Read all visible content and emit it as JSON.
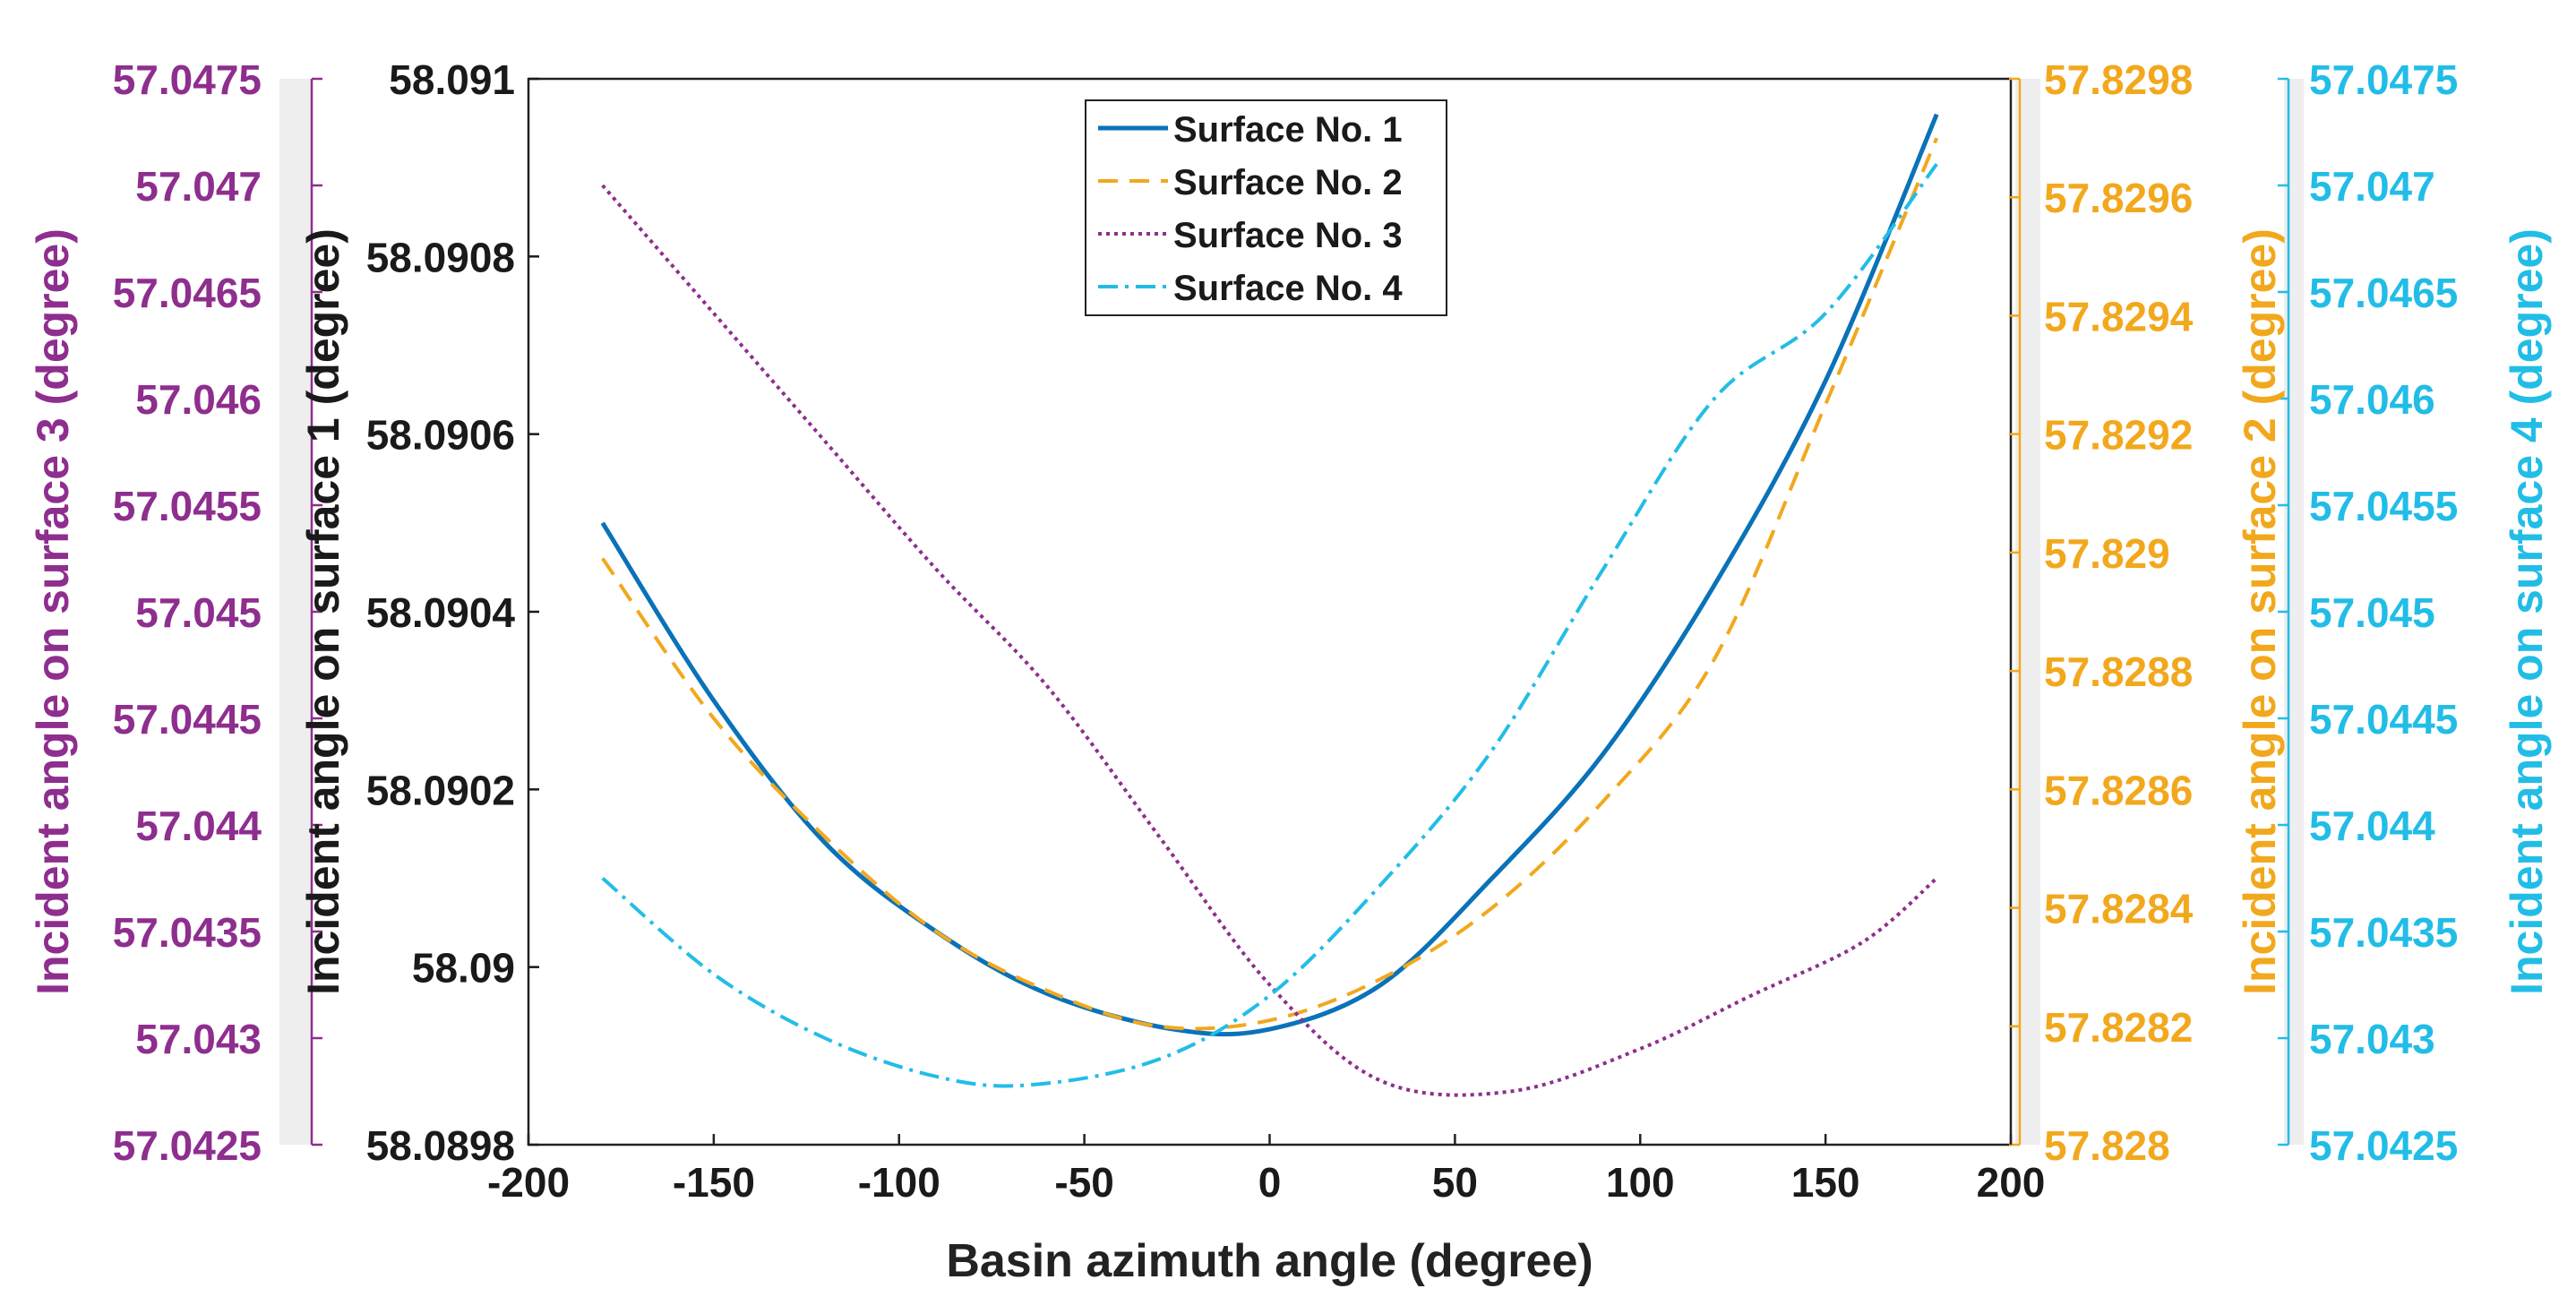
{
  "chart_data": {
    "type": "line",
    "title": "",
    "xlabel": "Basin azimuth angle (degree)",
    "xlim": [
      -200,
      200
    ],
    "x_ticks": [
      "-200",
      "-150",
      "-100",
      "-50",
      "0",
      "50",
      "100",
      "150",
      "200"
    ],
    "x_tick_values": [
      -200,
      -150,
      -100,
      -50,
      0,
      50,
      100,
      150,
      200
    ],
    "grid": false,
    "legend_position": "top-center",
    "axes": [
      {
        "id": "ax1",
        "label": "Incident angle on surface 1 (degree)",
        "color": "#1a1a1a",
        "side": "left-inner",
        "ylim": [
          58.0898,
          58.091
        ],
        "tick_values": [
          58.0898,
          58.09,
          58.0902,
          58.0904,
          58.0906,
          58.0908,
          58.091
        ],
        "ticks": [
          "58.0898",
          "58.09",
          "58.0902",
          "58.0904",
          "58.0906",
          "58.0908",
          "58.091"
        ]
      },
      {
        "id": "ax3",
        "label": "Incident angle on surface 3 (degree)",
        "color": "#8e2e8e",
        "side": "left-outer",
        "ylim": [
          57.0425,
          57.0475
        ],
        "tick_values": [
          57.0425,
          57.043,
          57.0435,
          57.044,
          57.0445,
          57.045,
          57.0455,
          57.046,
          57.0465,
          57.047,
          57.0475
        ],
        "ticks": [
          "57.0425",
          "57.043",
          "57.0435",
          "57.044",
          "57.0445",
          "57.045",
          "57.0455",
          "57.046",
          "57.0465",
          "57.047",
          "57.0475"
        ]
      },
      {
        "id": "ax2",
        "label": "Incident angle on surface 2 (degree)",
        "color": "#f2a81d",
        "side": "right-inner",
        "ylim": [
          57.828,
          57.8298
        ],
        "tick_values": [
          57.828,
          57.8282,
          57.8284,
          57.8286,
          57.8288,
          57.829,
          57.8292,
          57.8294,
          57.8296,
          57.8298
        ],
        "ticks": [
          "57.828",
          "57.8282",
          "57.8284",
          "57.8286",
          "57.8288",
          "57.829",
          "57.8292",
          "57.8294",
          "57.8296",
          "57.8298"
        ]
      },
      {
        "id": "ax4",
        "label": "Incident angle on surface 4 (degree)",
        "color": "#22bde6",
        "side": "right-outer",
        "ylim": [
          57.0425,
          57.0475
        ],
        "tick_values": [
          57.0425,
          57.043,
          57.0435,
          57.044,
          57.0445,
          57.045,
          57.0455,
          57.046,
          57.0465,
          57.047,
          57.0475
        ],
        "ticks": [
          "57.0425",
          "57.043",
          "57.0435",
          "57.044",
          "57.0445",
          "57.045",
          "57.0455",
          "57.046",
          "57.0465",
          "57.047",
          "57.0475"
        ]
      }
    ],
    "series": [
      {
        "name": "Surface No. 1",
        "axis": "ax1",
        "color": "#0a72b8",
        "style": "solid",
        "x": [
          -180,
          -150,
          -120,
          -90,
          -60,
          -26,
          0,
          30,
          60,
          90,
          120,
          150,
          180
        ],
        "y": [
          58.0905,
          58.0903,
          58.09014,
          58.09004,
          58.08997,
          58.08993,
          58.08993,
          58.08998,
          58.0901,
          58.09024,
          58.09043,
          58.09066,
          58.09096
        ]
      },
      {
        "name": "Surface No. 2",
        "axis": "ax2",
        "color": "#f2a81d",
        "style": "dashed",
        "x": [
          -180,
          -150,
          -120,
          -90,
          -60,
          -30,
          0,
          30,
          60,
          90,
          120,
          150,
          180
        ],
        "y": [
          57.82899,
          57.82872,
          57.82852,
          57.82836,
          57.82826,
          57.8282,
          57.82821,
          57.82828,
          57.8284,
          57.82858,
          57.82882,
          57.82925,
          57.8297
        ]
      },
      {
        "name": "Surface No. 3",
        "axis": "ax3",
        "color": "#8e2e8e",
        "style": "dotted",
        "x": [
          -180,
          -150,
          -120,
          -90,
          -60,
          -30,
          0,
          30,
          65,
          100,
          130,
          160,
          180
        ],
        "y": [
          57.047,
          57.0464,
          57.0458,
          57.0452,
          57.04465,
          57.04395,
          57.04325,
          57.0428,
          57.04275,
          57.04295,
          57.0432,
          57.04345,
          57.04375
        ]
      },
      {
        "name": "Surface No. 4",
        "axis": "ax4",
        "color": "#22bde6",
        "style": "dashdot",
        "x": [
          -180,
          -150,
          -120,
          -90,
          -65,
          -30,
          0,
          30,
          60,
          90,
          120,
          150,
          180
        ],
        "y": [
          57.04375,
          57.0433,
          57.043,
          57.04282,
          57.04278,
          57.0429,
          57.0432,
          57.04372,
          57.04435,
          57.0452,
          57.046,
          57.0464,
          57.0471
        ]
      }
    ]
  }
}
